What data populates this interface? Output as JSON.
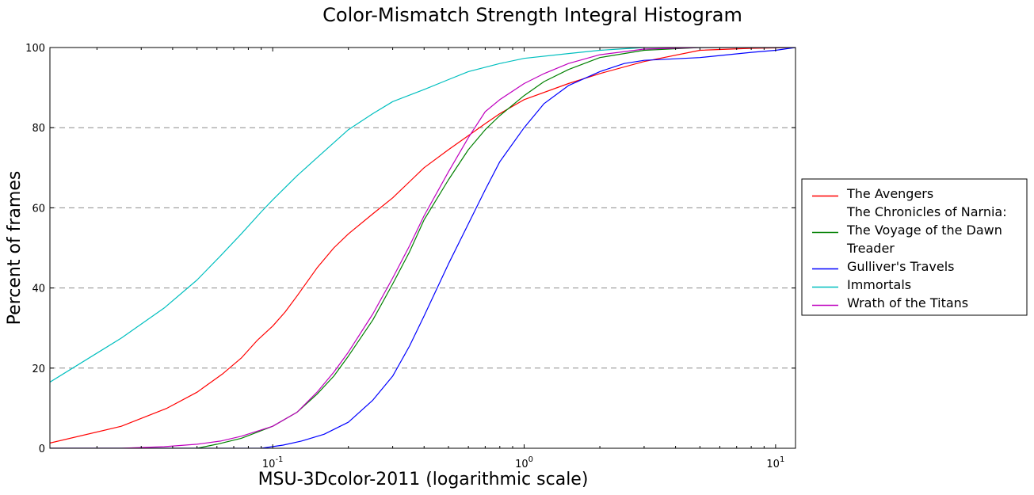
{
  "chart_data": {
    "type": "line",
    "title": "Color-Mismatch Strength Integral Histogram",
    "xlabel": "MSU-3Dcolor-2011 (logarithmic scale)",
    "ylabel": "Percent of frames",
    "xscale": "log",
    "xlim": [
      0.013,
      12
    ],
    "ylim": [
      0,
      100
    ],
    "x_ticks": [
      0.1,
      1,
      10
    ],
    "x_tick_labels": [
      {
        "base": "10",
        "exp": "-1"
      },
      {
        "base": "10",
        "exp": "0"
      },
      {
        "base": "10",
        "exp": "1"
      }
    ],
    "y_ticks": [
      0,
      20,
      40,
      60,
      80,
      100
    ],
    "y_tick_labels": [
      "0",
      "20",
      "40",
      "60",
      "80",
      "100"
    ],
    "grid": "horizontal-dashed",
    "legend_position": "right",
    "series": [
      {
        "name": "The Avengers",
        "name_lines": [
          "The Avengers"
        ],
        "color": "#ff0000",
        "points": [
          [
            0.013,
            1.3
          ],
          [
            0.025,
            5.5
          ],
          [
            0.038,
            10
          ],
          [
            0.05,
            14
          ],
          [
            0.063,
            18.5
          ],
          [
            0.075,
            22.5
          ],
          [
            0.087,
            27
          ],
          [
            0.1,
            30.5
          ],
          [
            0.112,
            34
          ],
          [
            0.125,
            38
          ],
          [
            0.15,
            45
          ],
          [
            0.175,
            50
          ],
          [
            0.2,
            53.5
          ],
          [
            0.25,
            58.5
          ],
          [
            0.3,
            62.5
          ],
          [
            0.35,
            66.5
          ],
          [
            0.4,
            70
          ],
          [
            0.5,
            74.5
          ],
          [
            0.6,
            78
          ],
          [
            0.7,
            81
          ],
          [
            0.8,
            83.5
          ],
          [
            1,
            87
          ],
          [
            1.5,
            91
          ],
          [
            2,
            93.5
          ],
          [
            3,
            96.5
          ],
          [
            5,
            99.3
          ],
          [
            8,
            99.8
          ],
          [
            12,
            100
          ]
        ]
      },
      {
        "name": "The Chronicles of Narnia: The Voyage of the Dawn Treader",
        "name_lines": [
          "The Chronicles of Narnia:",
          "The Voyage of the Dawn",
          "Treader"
        ],
        "color": "#008000",
        "points": [
          [
            0.013,
            0
          ],
          [
            0.05,
            0
          ],
          [
            0.06,
            1
          ],
          [
            0.075,
            2.5
          ],
          [
            0.1,
            5.5
          ],
          [
            0.125,
            9
          ],
          [
            0.15,
            13.5
          ],
          [
            0.175,
            18
          ],
          [
            0.2,
            23
          ],
          [
            0.25,
            32
          ],
          [
            0.3,
            41
          ],
          [
            0.35,
            49
          ],
          [
            0.4,
            57
          ],
          [
            0.5,
            67
          ],
          [
            0.6,
            74.5
          ],
          [
            0.7,
            79.5
          ],
          [
            0.8,
            83
          ],
          [
            1,
            88
          ],
          [
            1.2,
            91.5
          ],
          [
            1.5,
            94.5
          ],
          [
            2,
            97.5
          ],
          [
            3,
            99.3
          ],
          [
            5,
            100
          ],
          [
            12,
            100
          ]
        ]
      },
      {
        "name": "Gulliver's Travels",
        "name_lines": [
          "Gulliver's Travels"
        ],
        "color": "#0000ff",
        "points": [
          [
            0.013,
            0
          ],
          [
            0.09,
            0
          ],
          [
            0.11,
            0.8
          ],
          [
            0.13,
            1.8
          ],
          [
            0.16,
            3.5
          ],
          [
            0.2,
            6.5
          ],
          [
            0.25,
            12
          ],
          [
            0.3,
            18
          ],
          [
            0.35,
            25.5
          ],
          [
            0.4,
            33
          ],
          [
            0.5,
            46
          ],
          [
            0.6,
            56
          ],
          [
            0.7,
            64.5
          ],
          [
            0.8,
            71.5
          ],
          [
            1,
            80
          ],
          [
            1.2,
            86
          ],
          [
            1.5,
            90.5
          ],
          [
            2,
            94
          ],
          [
            2.5,
            96
          ],
          [
            3,
            96.8
          ],
          [
            5,
            97.5
          ],
          [
            8,
            98.8
          ],
          [
            10,
            99.3
          ],
          [
            12,
            100
          ]
        ]
      },
      {
        "name": "Immortals",
        "name_lines": [
          "Immortals"
        ],
        "color": "#00bfbf",
        "points": [
          [
            0.013,
            16.5
          ],
          [
            0.025,
            27.5
          ],
          [
            0.037,
            35
          ],
          [
            0.05,
            42
          ],
          [
            0.062,
            48
          ],
          [
            0.075,
            53.5
          ],
          [
            0.09,
            59
          ],
          [
            0.1,
            62
          ],
          [
            0.125,
            68
          ],
          [
            0.15,
            72.5
          ],
          [
            0.2,
            79.5
          ],
          [
            0.25,
            83.5
          ],
          [
            0.3,
            86.5
          ],
          [
            0.4,
            89.5
          ],
          [
            0.5,
            92
          ],
          [
            0.6,
            94
          ],
          [
            0.8,
            96
          ],
          [
            1,
            97.3
          ],
          [
            1.5,
            98.5
          ],
          [
            2,
            99.3
          ],
          [
            3,
            100
          ],
          [
            12,
            100
          ]
        ]
      },
      {
        "name": "Wrath of the Titans",
        "name_lines": [
          "Wrath of the Titans"
        ],
        "color": "#bf00bf",
        "points": [
          [
            0.013,
            0
          ],
          [
            0.025,
            0
          ],
          [
            0.037,
            0.4
          ],
          [
            0.05,
            1
          ],
          [
            0.062,
            1.8
          ],
          [
            0.075,
            3
          ],
          [
            0.1,
            5.5
          ],
          [
            0.125,
            9
          ],
          [
            0.15,
            14
          ],
          [
            0.175,
            19
          ],
          [
            0.2,
            24
          ],
          [
            0.25,
            33.5
          ],
          [
            0.3,
            42.5
          ],
          [
            0.35,
            50.5
          ],
          [
            0.4,
            58
          ],
          [
            0.5,
            69
          ],
          [
            0.6,
            77.5
          ],
          [
            0.7,
            84
          ],
          [
            0.8,
            87
          ],
          [
            1,
            91
          ],
          [
            1.2,
            93.5
          ],
          [
            1.5,
            96
          ],
          [
            2,
            98.2
          ],
          [
            3,
            99.6
          ],
          [
            5,
            100
          ],
          [
            12,
            100
          ]
        ]
      }
    ]
  }
}
